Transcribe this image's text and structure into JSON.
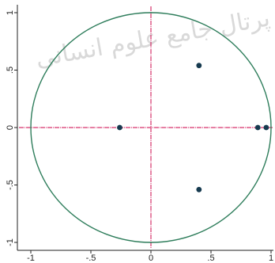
{
  "chart_data": {
    "type": "scatter",
    "title": "",
    "xlabel": "",
    "ylabel": "",
    "xlim": [
      -1.05,
      1.05
    ],
    "ylim": [
      -1.05,
      1.05
    ],
    "grid": false,
    "legend": "none",
    "x_ticks": [
      -1,
      -0.5,
      0,
      0.5,
      1
    ],
    "x_tick_labels": [
      "-1",
      "-.5",
      "0",
      ".5",
      "1"
    ],
    "y_ticks": [
      1,
      0.5,
      0,
      -0.5,
      -1
    ],
    "y_tick_labels": [
      "1",
      ".5",
      "0",
      "-.5",
      "-1"
    ],
    "unit_circle": {
      "radius": 1,
      "color": "#2e7d5b"
    },
    "reference_lines": {
      "x": 0,
      "y": 0,
      "color": "#d6336c"
    },
    "points": [
      {
        "x": -0.26,
        "y": 0.0
      },
      {
        "x": 0.4,
        "y": 0.54
      },
      {
        "x": 0.4,
        "y": -0.54
      },
      {
        "x": 0.89,
        "y": 0.0
      },
      {
        "x": 0.96,
        "y": 0.0
      }
    ],
    "point_color": "#163a4f",
    "axis_color": "#222222"
  },
  "watermark": {
    "text": "پرتال جامع علوم انسانی"
  }
}
